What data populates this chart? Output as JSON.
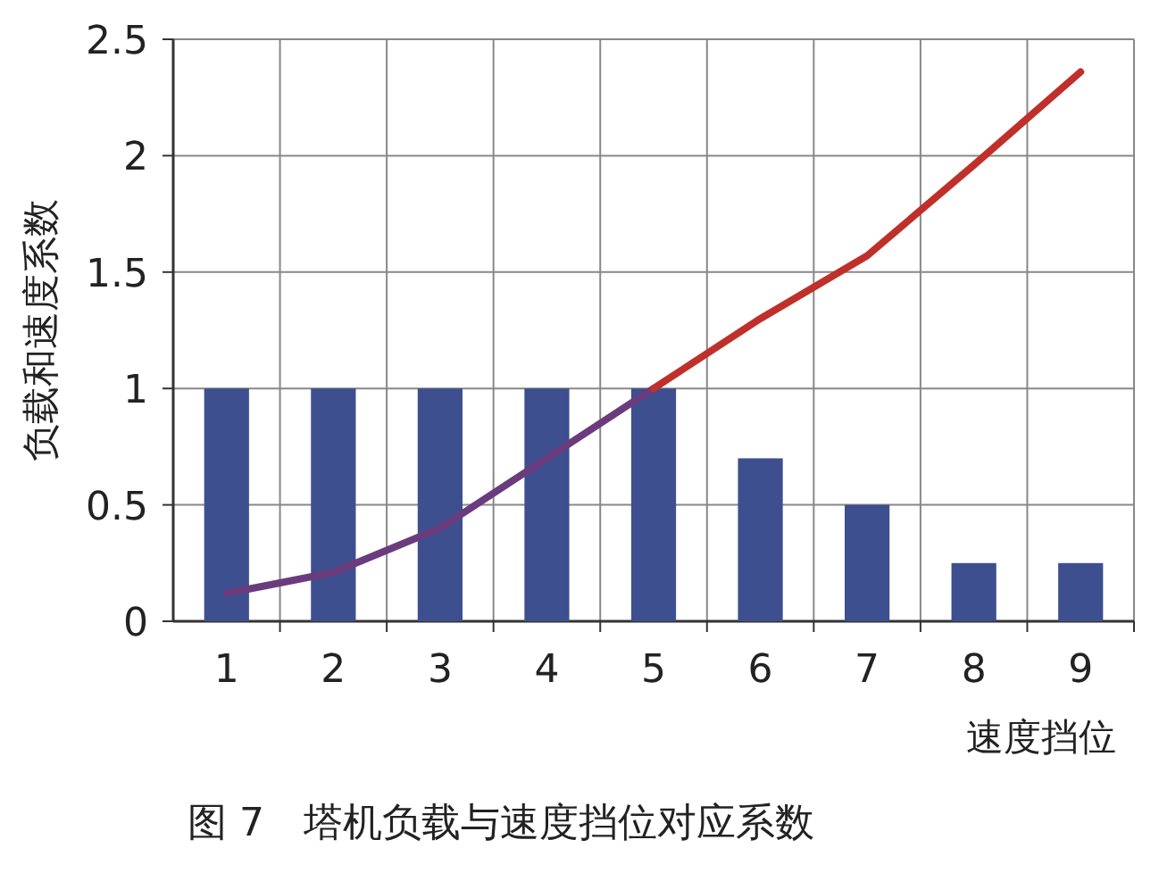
{
  "chart_data": {
    "type": "bar",
    "title": "图 7　塔机负载与速度挡位对应系数",
    "xlabel": "速度挡位",
    "ylabel": "负载和速度系数",
    "categories": [
      "1",
      "2",
      "3",
      "4",
      "5",
      "6",
      "7",
      "8",
      "9"
    ],
    "series": [
      {
        "color": "#3d4f8f",
        "values": [
          1,
          1,
          1,
          1,
          1,
          0.7,
          0.5,
          0.25,
          0.25
        ]
      },
      {
        "type": "line",
        "color": "#6a3c7e",
        "values": [
          0.12,
          0.21,
          0.4,
          0.7,
          1.0,
          null,
          null,
          null,
          null
        ]
      },
      {
        "type": "line",
        "color": "#c0302a",
        "values": [
          null,
          null,
          null,
          null,
          1.0,
          1.3,
          1.57,
          1.96,
          2.36
        ]
      }
    ],
    "ylim": [
      0,
      2.5
    ],
    "yticks": [
      0,
      0.5,
      1,
      1.5,
      2,
      2.5
    ],
    "grid": true
  }
}
